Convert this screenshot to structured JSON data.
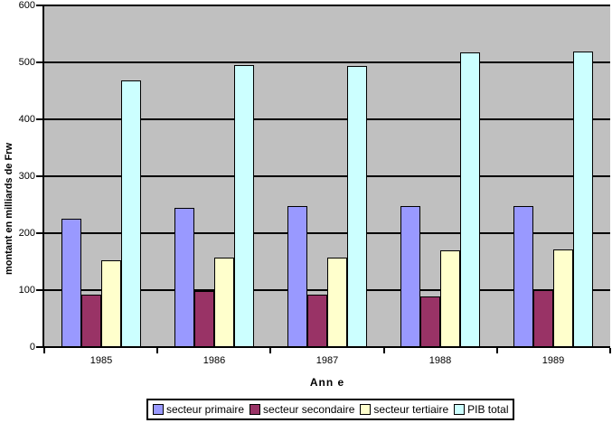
{
  "chart_data": {
    "type": "bar",
    "title": "",
    "categories": [
      "1985",
      "1986",
      "1987",
      "1988",
      "1989"
    ],
    "series": [
      {
        "name": "secteur primaire",
        "color": "#9999FF",
        "values": [
          224,
          243,
          246,
          246,
          246
        ]
      },
      {
        "name": "secteur secondaire",
        "color": "#993366",
        "values": [
          90,
          97,
          91,
          88,
          99
        ]
      },
      {
        "name": "secteur tertiaire",
        "color": "#FFFFCC",
        "values": [
          151,
          155,
          156,
          168,
          170
        ]
      },
      {
        "name": "PIB total",
        "color": "#CCFFFF",
        "values": [
          467,
          494,
          492,
          516,
          517
        ]
      }
    ],
    "xlabel": "Ann e",
    "ylabel": "montant en milliards de Frw",
    "ylim": [
      0,
      600
    ],
    "y_ticks": [
      0,
      100,
      200,
      300,
      400,
      500,
      600
    ],
    "grid": true,
    "legend_position": "bottom",
    "plot_bg": "#C0C0C0",
    "gridline_color": "#000000",
    "background_color": "#FFFFFF"
  }
}
